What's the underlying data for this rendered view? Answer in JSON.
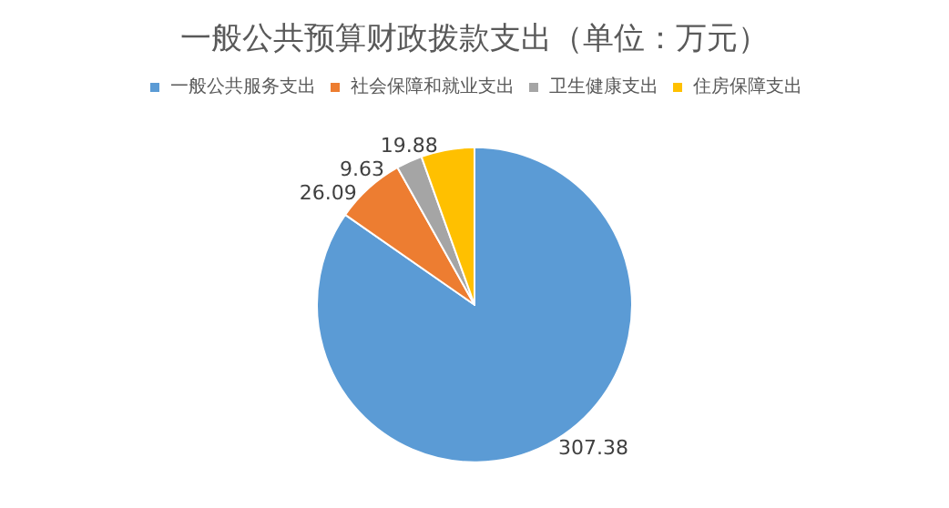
{
  "chart_data": {
    "type": "pie",
    "title": "一般公共预算财政拨款支出（单位：万元）",
    "categories": [
      "一般公共服务支出",
      "社会保障和就业支出",
      "卫生健康支出",
      "住房保障支出"
    ],
    "values": [
      307.38,
      26.09,
      9.63,
      19.88
    ],
    "colors": [
      "#5b9bd5",
      "#ed7d31",
      "#a5a5a5",
      "#ffc000"
    ],
    "data_labels": true,
    "legend": "top"
  }
}
